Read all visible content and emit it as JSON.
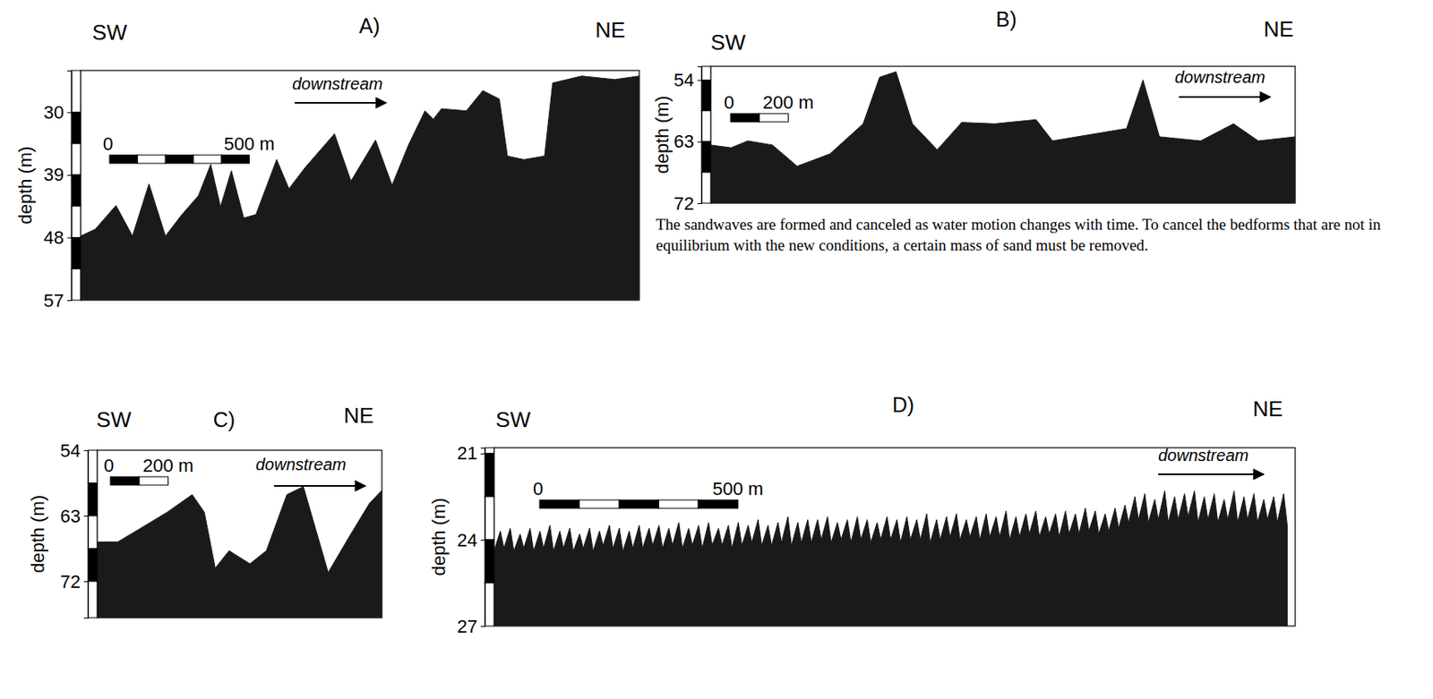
{
  "chart_data": [
    {
      "type": "area",
      "title": "A)",
      "sw_label": "SW",
      "ne_label": "NE",
      "flow_label": "downstream",
      "y_label": "depth (m)",
      "color": "#1a1a1a",
      "tick_labels": "y",
      "grid": false,
      "xlim": [
        0,
        2000
      ],
      "ylim": [
        24,
        57
      ],
      "yticks": [
        30,
        39,
        48,
        57
      ],
      "scale_bar": {
        "length": 500,
        "labels": [
          "0",
          "500 m"
        ]
      },
      "x": [
        0,
        53,
        127,
        186,
        245,
        304,
        363,
        422,
        466,
        501,
        540,
        584,
        628,
        702,
        746,
        805,
        909,
        968,
        1056,
        1115,
        1174,
        1233,
        1263,
        1292,
        1381,
        1440,
        1499,
        1528,
        1587,
        1661,
        1690,
        1794,
        1912,
        2000
      ],
      "values": [
        47.8,
        46.8,
        43.4,
        47.8,
        40.3,
        47.8,
        44.7,
        42.0,
        37.5,
        43.6,
        38.4,
        45.2,
        44.7,
        36.8,
        41.0,
        37.9,
        33.1,
        39.9,
        34.0,
        40.5,
        34.7,
        29.8,
        31.0,
        29.5,
        29.8,
        26.9,
        28.1,
        36.3,
        36.8,
        36.3,
        25.8,
        24.8,
        25.3,
        24.8
      ]
    },
    {
      "type": "area",
      "title": "B)",
      "sw_label": "SW",
      "ne_label": "NE",
      "flow_label": "downstream",
      "y_label": "depth (m)",
      "color": "#1a1a1a",
      "tick_labels": "y",
      "grid": false,
      "xlim": [
        0,
        2028
      ],
      "ylim": [
        52,
        72
      ],
      "yticks": [
        54,
        63,
        72
      ],
      "scale_bar": {
        "length": 200,
        "labels": [
          "0",
          "200 m"
        ]
      },
      "x": [
        0,
        71,
        129,
        214,
        300,
        414,
        529,
        586,
        643,
        700,
        786,
        871,
        986,
        1129,
        1186,
        1357,
        1443,
        1500,
        1557,
        1700,
        1814,
        1900,
        2028
      ],
      "values": [
        63.5,
        63.9,
        62.9,
        63.5,
        66.6,
        64.8,
        60.4,
        53.6,
        52.8,
        60.4,
        64.2,
        60.2,
        60.4,
        59.8,
        62.9,
        61.7,
        61.1,
        54.0,
        62.3,
        62.9,
        60.4,
        62.9,
        62.3
      ]
    },
    {
      "type": "area",
      "title": "C)",
      "sw_label": "SW",
      "ne_label": "NE",
      "flow_label": "downstream",
      "y_label": "depth (m)",
      "color": "#1a1a1a",
      "tick_labels": "y",
      "grid": false,
      "xlim": [
        0,
        986
      ],
      "ylim": [
        54,
        77
      ],
      "yticks": [
        54,
        63,
        72
      ],
      "scale_bar": {
        "length": 200,
        "labels": [
          "0",
          "200 m"
        ]
      },
      "x": [
        0,
        71,
        143,
        243,
        329,
        371,
        409,
        457,
        529,
        586,
        657,
        714,
        757,
        800,
        871,
        943,
        986
      ],
      "values": [
        66.6,
        66.6,
        64.9,
        62.5,
        60.1,
        62.5,
        70.2,
        67.8,
        69.6,
        67.8,
        60.1,
        59.0,
        64.9,
        70.8,
        66.0,
        61.3,
        59.5
      ]
    },
    {
      "type": "area",
      "title": "D)",
      "sw_label": "SW",
      "ne_label": "NE",
      "flow_label": "downstream",
      "y_label": "depth (m)",
      "color": "#1a1a1a",
      "tick_labels": "y",
      "grid": false,
      "xlim": [
        0,
        2020
      ],
      "ylim": [
        20.8,
        27
      ],
      "yticks": [
        21,
        24,
        27
      ],
      "scale_bar": {
        "length": 500,
        "labels": [
          "0",
          "500 m"
        ]
      },
      "x": [
        0,
        16,
        25,
        41,
        50,
        66,
        75,
        91,
        100,
        116,
        125,
        141,
        150,
        166,
        175,
        191,
        200,
        216,
        225,
        241,
        250,
        266,
        275,
        291,
        300,
        316,
        325,
        341,
        350,
        366,
        375,
        391,
        400,
        416,
        425,
        441,
        450,
        466,
        475,
        491,
        500,
        516,
        525,
        541,
        550,
        566,
        575,
        591,
        600,
        616,
        625,
        641,
        650,
        666,
        675,
        691,
        700,
        716,
        725,
        741,
        750,
        766,
        775,
        791,
        800,
        816,
        825,
        841,
        850,
        866,
        875,
        891,
        900,
        916,
        925,
        941,
        950,
        966,
        975,
        991,
        1000,
        1016,
        1025,
        1041,
        1050,
        1066,
        1075,
        1091,
        1100,
        1116,
        1125,
        1141,
        1150,
        1166,
        1175,
        1191,
        1200,
        1216,
        1225,
        1241,
        1250,
        1266,
        1275,
        1291,
        1300,
        1316,
        1325,
        1341,
        1350,
        1366,
        1375,
        1391,
        1400,
        1416,
        1425,
        1441,
        1450,
        1466,
        1475,
        1491,
        1500,
        1516,
        1525,
        1541,
        1550,
        1566,
        1575,
        1591,
        1600,
        1616,
        1625,
        1641,
        1650,
        1666,
        1675,
        1691,
        1700,
        1716,
        1725,
        1741,
        1750,
        1766,
        1775,
        1791,
        1800,
        1816,
        1825,
        1841,
        1850,
        1866,
        1875,
        1891,
        1900,
        1916,
        1925,
        1941,
        1950,
        1966,
        1975,
        1991,
        2000
      ],
      "values": [
        24.4,
        23.7,
        24.3,
        23.6,
        24.4,
        23.8,
        24.3,
        23.6,
        24.4,
        23.7,
        24.3,
        23.5,
        24.4,
        23.7,
        24.3,
        23.6,
        24.4,
        23.8,
        24.3,
        23.6,
        24.4,
        23.7,
        24.2,
        23.5,
        24.3,
        23.6,
        24.4,
        23.7,
        24.3,
        23.5,
        24.3,
        23.6,
        24.2,
        23.5,
        24.3,
        23.6,
        24.2,
        23.4,
        24.3,
        23.6,
        24.2,
        23.5,
        24.3,
        23.4,
        24.2,
        23.6,
        24.2,
        23.5,
        24.3,
        23.4,
        24.2,
        23.5,
        24.1,
        23.3,
        24.2,
        23.5,
        24.2,
        23.4,
        24.1,
        23.2,
        24.2,
        23.4,
        24.1,
        23.3,
        24.1,
        23.3,
        24.0,
        23.2,
        24.1,
        23.4,
        24.0,
        23.3,
        24.1,
        23.2,
        24.0,
        23.3,
        24.1,
        23.4,
        24.0,
        23.2,
        24.0,
        23.3,
        24.1,
        23.2,
        24.0,
        23.3,
        24.0,
        23.1,
        24.1,
        23.3,
        24.0,
        23.2,
        23.9,
        23.1,
        24.0,
        23.3,
        23.9,
        23.2,
        24.0,
        23.1,
        23.9,
        23.2,
        23.9,
        23.0,
        24.0,
        23.2,
        23.9,
        23.1,
        23.8,
        23.0,
        23.9,
        23.2,
        23.8,
        23.1,
        23.9,
        23.0,
        23.8,
        23.1,
        23.8,
        22.9,
        23.7,
        23.0,
        23.8,
        23.1,
        23.7,
        22.9,
        23.6,
        22.8,
        23.4,
        22.5,
        23.3,
        22.4,
        23.4,
        22.6,
        23.3,
        22.3,
        23.4,
        22.5,
        23.3,
        22.4,
        23.2,
        22.3,
        23.4,
        22.5,
        23.3,
        22.4,
        23.4,
        22.6,
        23.3,
        22.3,
        23.4,
        22.5,
        23.3,
        22.4,
        23.4,
        22.6,
        23.3,
        22.5,
        23.4,
        22.4,
        23.5
      ]
    }
  ],
  "caption": "The sandwaves are formed and canceled as water motion changes with time. To cancel the bedforms that are not in equilibrium with the new conditions, a certain  mass of sand must be removed."
}
